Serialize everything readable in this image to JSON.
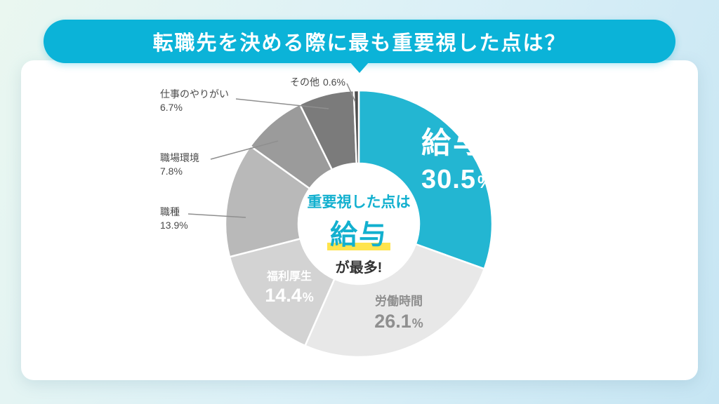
{
  "banner": {
    "title": "転職先を決める際に最も重要視した点は？"
  },
  "center_label": {
    "line1": "重要視した点は",
    "line2": "給与",
    "line3": "が最多!"
  },
  "chart_data": {
    "type": "pie",
    "style": "donut",
    "title": "転職先を決める際に最も重要視した点は？",
    "start_angle_deg": 0,
    "direction": "clockwise",
    "unit": "%",
    "accent_color": "#23b6d2",
    "highlight_color": "#ffe44d",
    "center_annotation": "重要視した点は 給与 が最多!",
    "segments": [
      {
        "label": "給与",
        "value": 30.5,
        "color": "#23b6d2",
        "label_placement": "inside"
      },
      {
        "label": "労働時間",
        "value": 26.1,
        "color": "#e8e8e8",
        "label_placement": "inside"
      },
      {
        "label": "福利厚生",
        "value": 14.4,
        "color": "#d3d3d3",
        "label_placement": "inside"
      },
      {
        "label": "職種",
        "value": 13.9,
        "color": "#b9b9b9",
        "label_placement": "outside"
      },
      {
        "label": "職場環境",
        "value": 7.8,
        "color": "#9b9b9b",
        "label_placement": "outside"
      },
      {
        "label": "仕事のやりがい",
        "value": 6.7,
        "color": "#7b7b7b",
        "label_placement": "outside"
      },
      {
        "label": "その他",
        "value": 0.6,
        "color": "#4e4e4e",
        "label_placement": "outside"
      }
    ]
  }
}
